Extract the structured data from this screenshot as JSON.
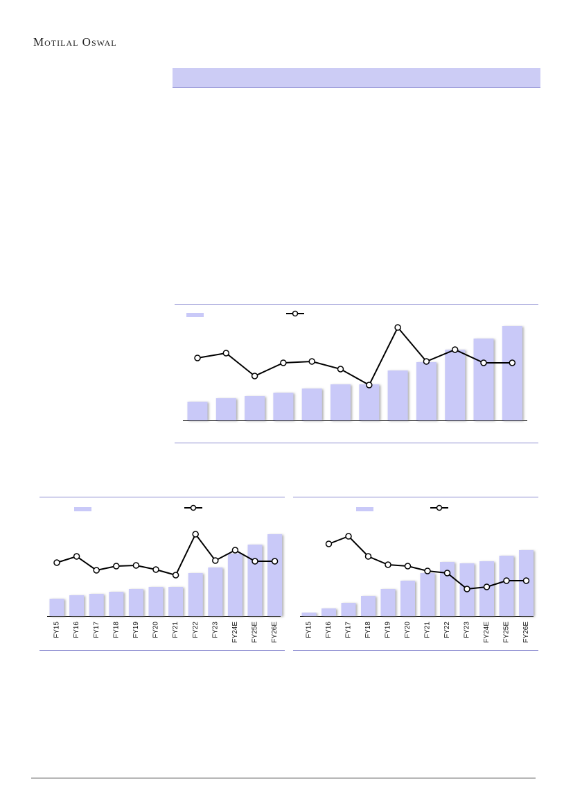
{
  "header": {
    "title": "Motilal Oswal"
  },
  "chart_data": [
    {
      "type": "bar-line",
      "series": [
        {
          "color": "#c9c9f8",
          "values": [
            27,
            32,
            35,
            40,
            46,
            52,
            52,
            72,
            84,
            102,
            118,
            136
          ]
        },
        {
          "color": "#000000",
          "axis": "y2",
          "values": [
            90,
            97,
            64,
            83,
            85,
            74,
            51,
            134,
            85,
            102,
            83,
            83
          ]
        }
      ]
    },
    {
      "type": "bar-line",
      "categories": [
        "FY15",
        "FY16",
        "FY17",
        "FY18",
        "FY19",
        "FY20",
        "FY21",
        "FY22",
        "FY23",
        "FY24E",
        "FY25E",
        "FY26E"
      ],
      "series": [
        {
          "color": "#c9c9f8",
          "values": [
            25,
            30,
            32,
            35,
            39,
            42,
            42,
            62,
            70,
            90,
            103,
            118
          ]
        },
        {
          "color": "#000000",
          "axis": "y2",
          "values": [
            77,
            86,
            66,
            72,
            73,
            67,
            59,
            118,
            80,
            95,
            79,
            79
          ]
        }
      ]
    },
    {
      "type": "bar-line",
      "categories": [
        "FY15",
        "FY16",
        "FY17",
        "FY18",
        "FY19",
        "FY20",
        "FY21",
        "FY22",
        "FY23",
        "FY24E",
        "FY25E",
        "FY26E"
      ],
      "series": [
        {
          "color": "#c9c9f8",
          "values": [
            5,
            11,
            19,
            29,
            39,
            51,
            62,
            78,
            76,
            79,
            87,
            95
          ]
        },
        {
          "color": "#000000",
          "axis": "y2",
          "values": [
            null,
            104,
            115,
            86,
            74,
            72,
            65,
            62,
            39,
            42,
            51,
            51
          ]
        }
      ]
    }
  ]
}
